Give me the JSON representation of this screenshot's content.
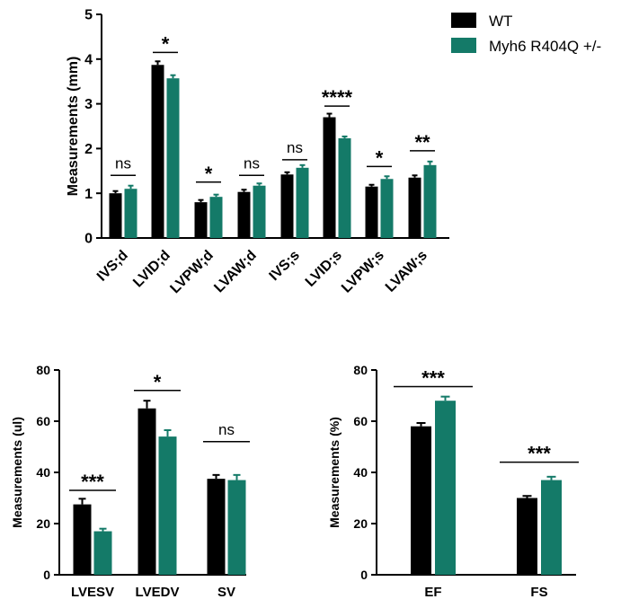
{
  "legend": [
    {
      "label": "WT",
      "color": "#000000"
    },
    {
      "label": "Myh6 R404Q +/-",
      "color": "#147a68"
    }
  ],
  "chart_data": [
    {
      "id": "top",
      "type": "bar",
      "ylabel": "Measurements (mm)",
      "ylim": [
        0,
        5
      ],
      "yticks": [
        "0",
        "1",
        "2",
        "3",
        "4",
        "5"
      ],
      "categories": [
        "IVS;d",
        "LVID;d",
        "LVPW;d",
        "LVAW;d",
        "IVS;s",
        "LVID;s",
        "LVPW;s",
        "LVAW;s"
      ],
      "series": [
        {
          "name": "WT",
          "values": [
            1.0,
            3.87,
            0.8,
            1.03,
            1.42,
            2.7,
            1.15,
            1.35
          ],
          "errors": [
            0.05,
            0.08,
            0.05,
            0.05,
            0.05,
            0.08,
            0.04,
            0.05
          ]
        },
        {
          "name": "Myh6 R404Q +/-",
          "values": [
            1.1,
            3.57,
            0.92,
            1.17,
            1.57,
            2.23,
            1.32,
            1.63
          ],
          "errors": [
            0.07,
            0.07,
            0.05,
            0.05,
            0.06,
            0.04,
            0.06,
            0.08
          ]
        }
      ],
      "significance": [
        "ns",
        "*",
        "*",
        "ns",
        "ns",
        "****",
        "*",
        "**"
      ],
      "sig_levels": [
        1.4,
        4.15,
        1.25,
        1.4,
        1.75,
        2.95,
        1.6,
        1.95
      ]
    },
    {
      "id": "bottom-left",
      "type": "bar",
      "ylabel": "Measurements (ul)",
      "ylim": [
        0,
        80
      ],
      "yticks": [
        "0",
        "20",
        "40",
        "60",
        "80"
      ],
      "categories": [
        "LVESV",
        "LVEDV",
        "SV"
      ],
      "series": [
        {
          "name": "WT",
          "values": [
            27.5,
            65,
            37.5
          ],
          "errors": [
            2.2,
            3.0,
            1.5
          ]
        },
        {
          "name": "Myh6 R404Q +/-",
          "values": [
            17,
            54,
            37
          ],
          "errors": [
            1.0,
            2.5,
            2.0
          ]
        }
      ],
      "significance": [
        "***",
        "*",
        "ns"
      ],
      "sig_levels": [
        33,
        72,
        52
      ]
    },
    {
      "id": "bottom-right",
      "type": "bar",
      "ylabel": "Measurements (%)",
      "ylim": [
        0,
        80
      ],
      "yticks": [
        "0",
        "20",
        "40",
        "60",
        "80"
      ],
      "categories": [
        "EF",
        "FS"
      ],
      "series": [
        {
          "name": "WT",
          "values": [
            58,
            30
          ],
          "errors": [
            1.3,
            0.8
          ]
        },
        {
          "name": "Myh6 R404Q +/-",
          "values": [
            68,
            37
          ],
          "errors": [
            1.6,
            1.3
          ]
        }
      ],
      "significance": [
        "***",
        "***"
      ],
      "sig_levels": [
        73.5,
        44
      ]
    }
  ]
}
